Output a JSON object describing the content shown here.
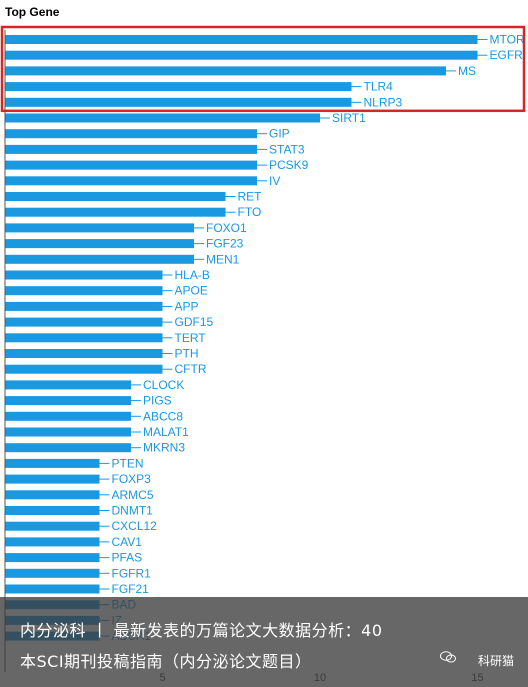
{
  "chart_data": {
    "type": "bar",
    "orientation": "horizontal",
    "title": "Top Gene",
    "xlabel": "",
    "ylabel": "",
    "xlim": [
      0,
      15.5
    ],
    "xticks": [
      5,
      10,
      15
    ],
    "grid": false,
    "bar_color": "#1a98e0",
    "highlight_color": "#d62728",
    "highlighted_categories": [
      "MTOR",
      "EGFR",
      "MS",
      "TLR4",
      "NLRP3"
    ],
    "categories": [
      "MTOR",
      "EGFR",
      "MS",
      "TLR4",
      "NLRP3",
      "SIRT1",
      "GIP",
      "STAT3",
      "PCSK9",
      "IV",
      "RET",
      "FTO",
      "FOXO1",
      "FGF23",
      "MEN1",
      "HLA-B",
      "APOE",
      "APP",
      "GDF15",
      "TERT",
      "PTH",
      "CFTR",
      "CLOCK",
      "PIGS",
      "ABCC8",
      "MALAT1",
      "MKRN3",
      "PTEN",
      "FOXP3",
      "ARMC5",
      "DNMT1",
      "CXCL12",
      "CAV1",
      "PFAS",
      "FGFR1",
      "FGF21",
      "BAD",
      "IZ",
      "ABCA1"
    ],
    "values": [
      15,
      15,
      14,
      11,
      11,
      10,
      8,
      8,
      8,
      8,
      7,
      7,
      6,
      6,
      6,
      5,
      5,
      5,
      5,
      5,
      5,
      5,
      4,
      4,
      4,
      4,
      4,
      3,
      3,
      3,
      3,
      3,
      3,
      3,
      3,
      3,
      3,
      3,
      3
    ]
  },
  "banner": {
    "line1": "内分泌科 丨 最新发表的万篇论文大数据分析：40",
    "line2": "本SCI期刊投稿指南（内分泌论文题目）",
    "source": "科研猫"
  }
}
